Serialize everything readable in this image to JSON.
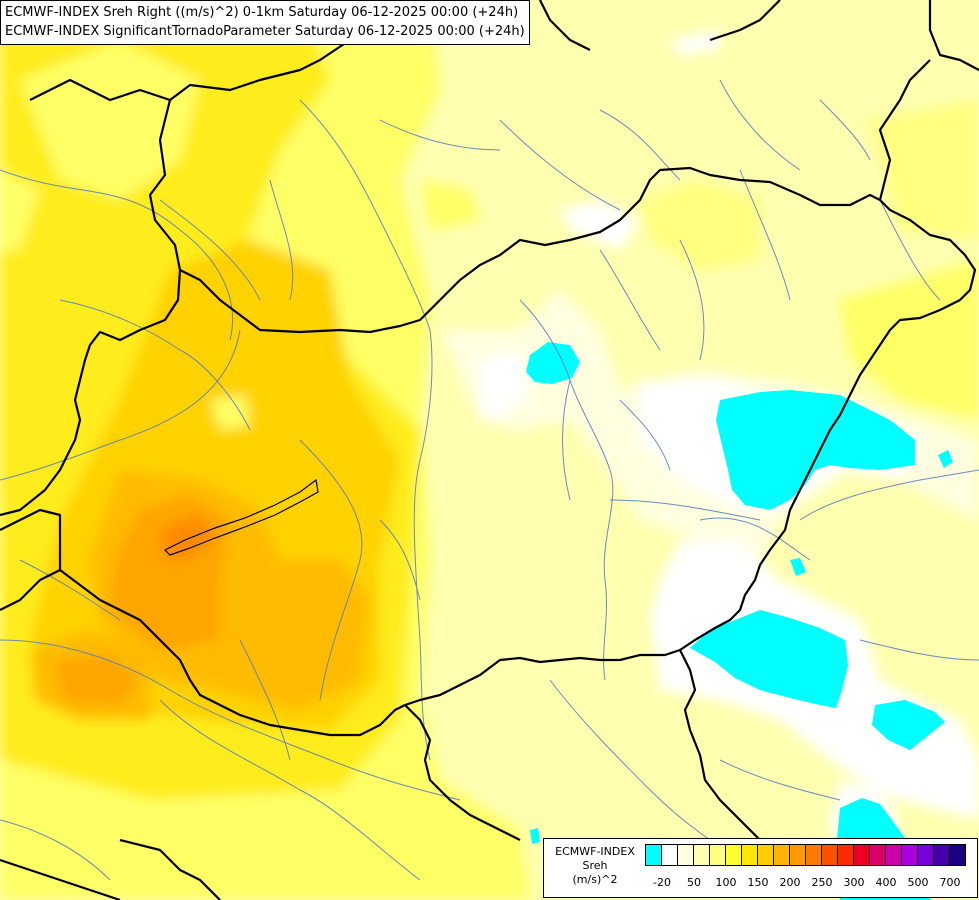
{
  "title": {
    "line1": "ECMWF-INDEX Sreh Right ((m/s)^2) 0-1km Saturday 06-12-2025 00:00 (+24h)",
    "line2": "ECMWF-INDEX SignificantTornadoParameter Saturday 06-12-2025 00:00 (+24h)"
  },
  "legend": {
    "line1": "ECMWF-INDEX",
    "line2": "Sreh",
    "line3": "(m/s)^2",
    "colors": [
      "#00ffff",
      "#ffffff",
      "#ffffe0",
      "#ffffb0",
      "#ffff80",
      "#ffff30",
      "#ffe600",
      "#ffcc00",
      "#ffb400",
      "#ff9900",
      "#ff7a00",
      "#ff5000",
      "#ff2a00",
      "#ee0022",
      "#dd0066",
      "#cc00aa",
      "#aa00dd",
      "#7700dd",
      "#4400aa",
      "#1a0080"
    ],
    "ticks": [
      {
        "label": "-20",
        "at": 1
      },
      {
        "label": "50",
        "at": 3
      },
      {
        "label": "100",
        "at": 5
      },
      {
        "label": "150",
        "at": 7
      },
      {
        "label": "200",
        "at": 9
      },
      {
        "label": "250",
        "at": 11
      },
      {
        "label": "300",
        "at": 13
      },
      {
        "label": "400",
        "at": 15
      },
      {
        "label": "500",
        "at": 17
      },
      {
        "label": "700",
        "at": 19
      }
    ]
  }
}
